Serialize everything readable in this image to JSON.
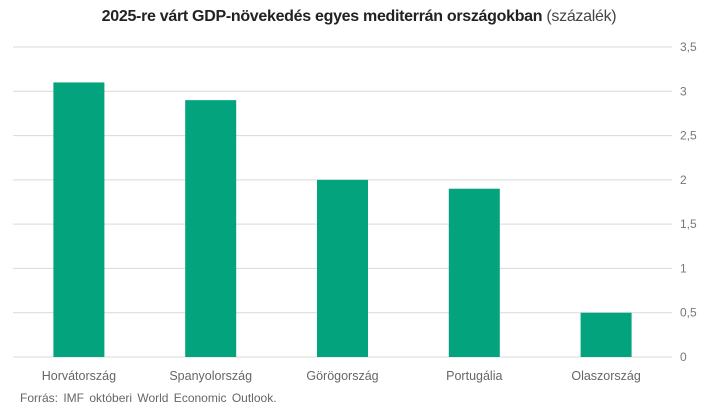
{
  "chart_data": {
    "type": "bar",
    "title": "2025-re várt GDP-növekedés egyes mediterrán országokban",
    "title_unit": "(százalék)",
    "categories": [
      "Horvátország",
      "Spanyolország",
      "Görögország",
      "Portugália",
      "Olaszország"
    ],
    "values": [
      3.1,
      2.9,
      2.0,
      1.9,
      0.5
    ],
    "ylim": [
      0,
      3.5
    ],
    "yticks": [
      0,
      0.5,
      1,
      1.5,
      2,
      2.5,
      3,
      3.5
    ],
    "ytick_labels": [
      "0",
      "0,5",
      "1",
      "1,5",
      "2",
      "2,5",
      "3",
      "3,5"
    ],
    "y_axis_side": "right",
    "grid": true,
    "bar_color": "#03a47d",
    "source": "Forrás: IMF októberi World Economic Outlook."
  }
}
